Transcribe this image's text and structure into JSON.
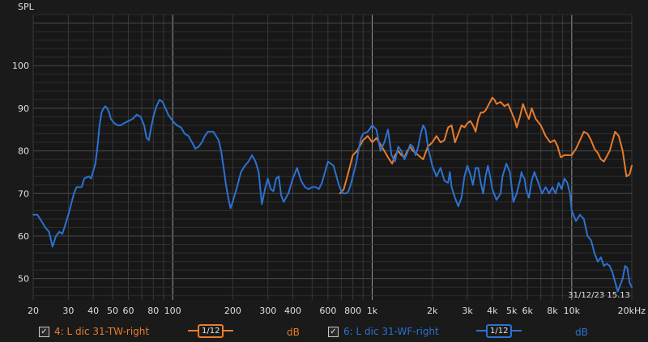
{
  "chart_data": {
    "type": "line",
    "ylabel": "SPL",
    "x_unit": "Hz",
    "x_scale": "log",
    "xlim": [
      20,
      20000
    ],
    "ylim": [
      45,
      112
    ],
    "grid": true,
    "x_ticks": [
      {
        "v": 20,
        "label": "20"
      },
      {
        "v": 30,
        "label": "30"
      },
      {
        "v": 40,
        "label": "40"
      },
      {
        "v": 50,
        "label": "50"
      },
      {
        "v": 60,
        "label": "60"
      },
      {
        "v": 80,
        "label": "80"
      },
      {
        "v": 100,
        "label": "100"
      },
      {
        "v": 200,
        "label": "200"
      },
      {
        "v": 300,
        "label": "300"
      },
      {
        "v": 400,
        "label": "400"
      },
      {
        "v": 600,
        "label": "600"
      },
      {
        "v": 800,
        "label": "800"
      },
      {
        "v": 1000,
        "label": "1k"
      },
      {
        "v": 2000,
        "label": "2k"
      },
      {
        "v": 3000,
        "label": "3k"
      },
      {
        "v": 4000,
        "label": "4k"
      },
      {
        "v": 5000,
        "label": "5k"
      },
      {
        "v": 6000,
        "label": "6k"
      },
      {
        "v": 8000,
        "label": "8k"
      },
      {
        "v": 10000,
        "label": "10k"
      },
      {
        "v": 20000,
        "label": "20kHz"
      }
    ],
    "y_ticks": [
      {
        "v": 50,
        "label": "50"
      },
      {
        "v": 60,
        "label": "60"
      },
      {
        "v": 70,
        "label": "70"
      },
      {
        "v": 80,
        "label": "80"
      },
      {
        "v": 90,
        "label": "90"
      },
      {
        "v": 100,
        "label": "100"
      }
    ],
    "timestamp": "31/12/23 15.13",
    "series": [
      {
        "name": "4: L dic 31-TW-right",
        "color": "#e87c2c",
        "smoothing": "1/12",
        "unit": "dB",
        "points": [
          [
            690,
            70
          ],
          [
            720,
            71
          ],
          [
            760,
            75
          ],
          [
            800,
            79
          ],
          [
            840,
            80
          ],
          [
            900,
            82.5
          ],
          [
            950,
            83.5
          ],
          [
            1000,
            82
          ],
          [
            1050,
            83
          ],
          [
            1100,
            81.5
          ],
          [
            1150,
            80
          ],
          [
            1200,
            78.5
          ],
          [
            1260,
            77
          ],
          [
            1300,
            79
          ],
          [
            1350,
            80
          ],
          [
            1400,
            79
          ],
          [
            1450,
            78.5
          ],
          [
            1500,
            80
          ],
          [
            1550,
            81
          ],
          [
            1600,
            80
          ],
          [
            1700,
            79
          ],
          [
            1800,
            78
          ],
          [
            1900,
            81
          ],
          [
            2000,
            82
          ],
          [
            2100,
            83.5
          ],
          [
            2200,
            82
          ],
          [
            2300,
            82.5
          ],
          [
            2400,
            85.5
          ],
          [
            2500,
            86
          ],
          [
            2600,
            82
          ],
          [
            2700,
            84
          ],
          [
            2800,
            86
          ],
          [
            2900,
            85.5
          ],
          [
            3000,
            86.5
          ],
          [
            3100,
            87
          ],
          [
            3200,
            86
          ],
          [
            3300,
            84.5
          ],
          [
            3400,
            87.5
          ],
          [
            3500,
            89
          ],
          [
            3600,
            89
          ],
          [
            3700,
            89.5
          ],
          [
            3800,
            90.5
          ],
          [
            3900,
            91.5
          ],
          [
            4000,
            92.5
          ],
          [
            4100,
            92
          ],
          [
            4200,
            91
          ],
          [
            4400,
            91.5
          ],
          [
            4600,
            90.5
          ],
          [
            4800,
            91
          ],
          [
            5000,
            89
          ],
          [
            5200,
            87
          ],
          [
            5300,
            85.5
          ],
          [
            5500,
            88
          ],
          [
            5700,
            91
          ],
          [
            5900,
            89
          ],
          [
            6100,
            87.5
          ],
          [
            6300,
            90
          ],
          [
            6600,
            87.5
          ],
          [
            7000,
            86
          ],
          [
            7400,
            83.5
          ],
          [
            7800,
            82
          ],
          [
            8200,
            82.5
          ],
          [
            8500,
            81
          ],
          [
            8800,
            78.5
          ],
          [
            9200,
            79
          ],
          [
            9600,
            79
          ],
          [
            10000,
            79
          ],
          [
            10500,
            80.5
          ],
          [
            11000,
            82.5
          ],
          [
            11500,
            84.5
          ],
          [
            12000,
            84
          ],
          [
            12500,
            82.5
          ],
          [
            13000,
            80.5
          ],
          [
            13500,
            79.5
          ],
          [
            14000,
            78
          ],
          [
            14500,
            77.5
          ],
          [
            15500,
            80
          ],
          [
            16500,
            84.5
          ],
          [
            17200,
            83.5
          ],
          [
            18000,
            80
          ],
          [
            18800,
            74
          ],
          [
            19500,
            74.5
          ],
          [
            20000,
            76.5
          ]
        ]
      },
      {
        "name": "6: L dic 31-WF-right",
        "color": "#2b72d2",
        "smoothing": "1/12",
        "unit": "dB",
        "points": [
          [
            20,
            65
          ],
          [
            21,
            65
          ],
          [
            22,
            63.5
          ],
          [
            23,
            62
          ],
          [
            24,
            61
          ],
          [
            25,
            57.5
          ],
          [
            26,
            60
          ],
          [
            27,
            61
          ],
          [
            28,
            60.5
          ],
          [
            30,
            65
          ],
          [
            32,
            70
          ],
          [
            33,
            71.5
          ],
          [
            35,
            71.5
          ],
          [
            36,
            73.5
          ],
          [
            38,
            74
          ],
          [
            39,
            73.5
          ],
          [
            41,
            77
          ],
          [
            42,
            81
          ],
          [
            43,
            86
          ],
          [
            44,
            89
          ],
          [
            45,
            90
          ],
          [
            46,
            90.5
          ],
          [
            47,
            90
          ],
          [
            48,
            89
          ],
          [
            49,
            87.5
          ],
          [
            51,
            86.5
          ],
          [
            53,
            86
          ],
          [
            55,
            86
          ],
          [
            57,
            86.5
          ],
          [
            60,
            87
          ],
          [
            63,
            87.5
          ],
          [
            66,
            88.5
          ],
          [
            69,
            88
          ],
          [
            72,
            86
          ],
          [
            74,
            83
          ],
          [
            76,
            82.5
          ],
          [
            78,
            85.5
          ],
          [
            80,
            88
          ],
          [
            83,
            90.5
          ],
          [
            86,
            92
          ],
          [
            89,
            91.5
          ],
          [
            92,
            90
          ],
          [
            95,
            88.5
          ],
          [
            100,
            87
          ],
          [
            105,
            86
          ],
          [
            110,
            85.5
          ],
          [
            115,
            84
          ],
          [
            120,
            83.5
          ],
          [
            125,
            82
          ],
          [
            130,
            80.5
          ],
          [
            135,
            81
          ],
          [
            140,
            82
          ],
          [
            145,
            83.5
          ],
          [
            150,
            84.5
          ],
          [
            160,
            84.5
          ],
          [
            170,
            82.5
          ],
          [
            175,
            80
          ],
          [
            180,
            76
          ],
          [
            185,
            72
          ],
          [
            190,
            69
          ],
          [
            195,
            66.5
          ],
          [
            200,
            68
          ],
          [
            210,
            71.5
          ],
          [
            220,
            75
          ],
          [
            230,
            76.5
          ],
          [
            240,
            77.5
          ],
          [
            250,
            79
          ],
          [
            260,
            77.5
          ],
          [
            270,
            75
          ],
          [
            275,
            71
          ],
          [
            280,
            67.5
          ],
          [
            290,
            71
          ],
          [
            300,
            73.5
          ],
          [
            310,
            71
          ],
          [
            320,
            70.5
          ],
          [
            330,
            73.5
          ],
          [
            340,
            74
          ],
          [
            350,
            69.5
          ],
          [
            360,
            68
          ],
          [
            380,
            70
          ],
          [
            400,
            73.5
          ],
          [
            420,
            76
          ],
          [
            440,
            73
          ],
          [
            460,
            71.5
          ],
          [
            480,
            71
          ],
          [
            500,
            71.5
          ],
          [
            520,
            71.5
          ],
          [
            540,
            71
          ],
          [
            560,
            72.5
          ],
          [
            580,
            75
          ],
          [
            600,
            77.5
          ],
          [
            640,
            76.5
          ],
          [
            680,
            72
          ],
          [
            700,
            70.5
          ],
          [
            720,
            70
          ],
          [
            740,
            70
          ],
          [
            760,
            70.5
          ],
          [
            780,
            72
          ],
          [
            800,
            74
          ],
          [
            830,
            77
          ],
          [
            860,
            81
          ],
          [
            880,
            83
          ],
          [
            900,
            84
          ],
          [
            950,
            84.5
          ],
          [
            1000,
            86
          ],
          [
            1050,
            85
          ],
          [
            1100,
            80
          ],
          [
            1150,
            82
          ],
          [
            1200,
            85
          ],
          [
            1250,
            79
          ],
          [
            1300,
            77.5
          ],
          [
            1350,
            81
          ],
          [
            1400,
            80
          ],
          [
            1450,
            78
          ],
          [
            1500,
            79.5
          ],
          [
            1550,
            81.5
          ],
          [
            1600,
            81
          ],
          [
            1650,
            79
          ],
          [
            1700,
            81
          ],
          [
            1750,
            84
          ],
          [
            1800,
            86
          ],
          [
            1850,
            85
          ],
          [
            1900,
            81
          ],
          [
            2000,
            76.5
          ],
          [
            2100,
            74
          ],
          [
            2200,
            76
          ],
          [
            2300,
            73
          ],
          [
            2400,
            72.5
          ],
          [
            2450,
            75
          ],
          [
            2500,
            71.5
          ],
          [
            2600,
            69
          ],
          [
            2700,
            67
          ],
          [
            2800,
            69
          ],
          [
            2900,
            74
          ],
          [
            3000,
            76.5
          ],
          [
            3100,
            74.5
          ],
          [
            3200,
            72
          ],
          [
            3300,
            76
          ],
          [
            3400,
            76
          ],
          [
            3500,
            72.5
          ],
          [
            3600,
            70
          ],
          [
            3700,
            74
          ],
          [
            3800,
            76.5
          ],
          [
            3900,
            74
          ],
          [
            4000,
            71
          ],
          [
            4200,
            68.5
          ],
          [
            4400,
            70
          ],
          [
            4500,
            74
          ],
          [
            4700,
            77
          ],
          [
            4900,
            75
          ],
          [
            5000,
            71.5
          ],
          [
            5100,
            68
          ],
          [
            5300,
            70
          ],
          [
            5500,
            73
          ],
          [
            5600,
            75
          ],
          [
            5700,
            74
          ],
          [
            5800,
            73.5
          ],
          [
            5900,
            71
          ],
          [
            6100,
            69
          ],
          [
            6300,
            73
          ],
          [
            6500,
            75
          ],
          [
            6800,
            72.5
          ],
          [
            7100,
            70
          ],
          [
            7400,
            71.5
          ],
          [
            7700,
            70
          ],
          [
            8000,
            71.5
          ],
          [
            8300,
            70
          ],
          [
            8600,
            72.5
          ],
          [
            8900,
            71
          ],
          [
            9200,
            73.5
          ],
          [
            9500,
            72.5
          ],
          [
            9800,
            70
          ],
          [
            10000,
            66
          ],
          [
            10500,
            63.5
          ],
          [
            11000,
            65
          ],
          [
            11500,
            64
          ],
          [
            12000,
            60
          ],
          [
            12500,
            59
          ],
          [
            13000,
            56
          ],
          [
            13500,
            54
          ],
          [
            14000,
            55
          ],
          [
            14500,
            53
          ],
          [
            15000,
            53.5
          ],
          [
            15500,
            53
          ],
          [
            16000,
            51.5
          ],
          [
            17000,
            47
          ],
          [
            18000,
            50
          ],
          [
            18500,
            53
          ],
          [
            19000,
            52.5
          ],
          [
            19500,
            49
          ],
          [
            20000,
            48
          ]
        ]
      }
    ]
  }
}
